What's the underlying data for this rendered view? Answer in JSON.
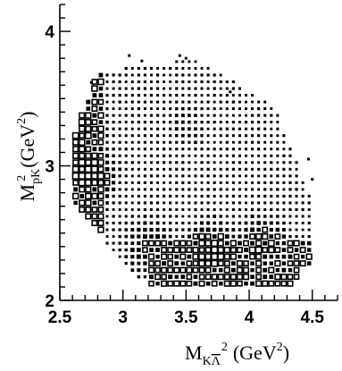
{
  "chart_data": {
    "type": "heatmap",
    "title": "",
    "xlabel": {
      "base": "M",
      "subscript": "K",
      "subscript_overbar": "Λ",
      "superscript": "2",
      "unit": "(GeV",
      "unit_superscript": "2",
      "unit_close": ")"
    },
    "ylabel": {
      "base": "M",
      "subscript": "pK",
      "superscript": "2",
      "unit": "(GeV",
      "unit_superscript": "2",
      "unit_close": ")"
    },
    "xlim": [
      2.5,
      4.7
    ],
    "ylim": [
      2.0,
      4.2
    ],
    "x_ticks": [
      {
        "value": 2.5,
        "label": "2.5"
      },
      {
        "value": 3.0,
        "label": "3"
      },
      {
        "value": 3.5,
        "label": "3.5"
      },
      {
        "value": 4.0,
        "label": "4"
      },
      {
        "value": 4.5,
        "label": "4.5"
      }
    ],
    "y_ticks": [
      {
        "value": 2,
        "label": "2"
      },
      {
        "value": 3,
        "label": "3"
      },
      {
        "value": 4,
        "label": "4"
      }
    ],
    "x_minor_step": 0.1,
    "y_minor_step": 0.1,
    "bin_width": 0.05,
    "density_description_regions": [
      {
        "x": 2.72,
        "y": 2.95,
        "level": 1.0
      },
      {
        "x": 2.65,
        "y": 3.25,
        "level": 0.8
      },
      {
        "x": 3.7,
        "y": 2.35,
        "level": 0.9
      },
      {
        "x": 4.1,
        "y": 2.4,
        "level": 0.8
      },
      {
        "x": 3.2,
        "y": 2.4,
        "level": 0.6
      },
      {
        "x": 3.5,
        "y": 3.3,
        "level": 0.35
      }
    ],
    "colors": {
      "box": "#000000",
      "background": "#ffffff"
    }
  }
}
